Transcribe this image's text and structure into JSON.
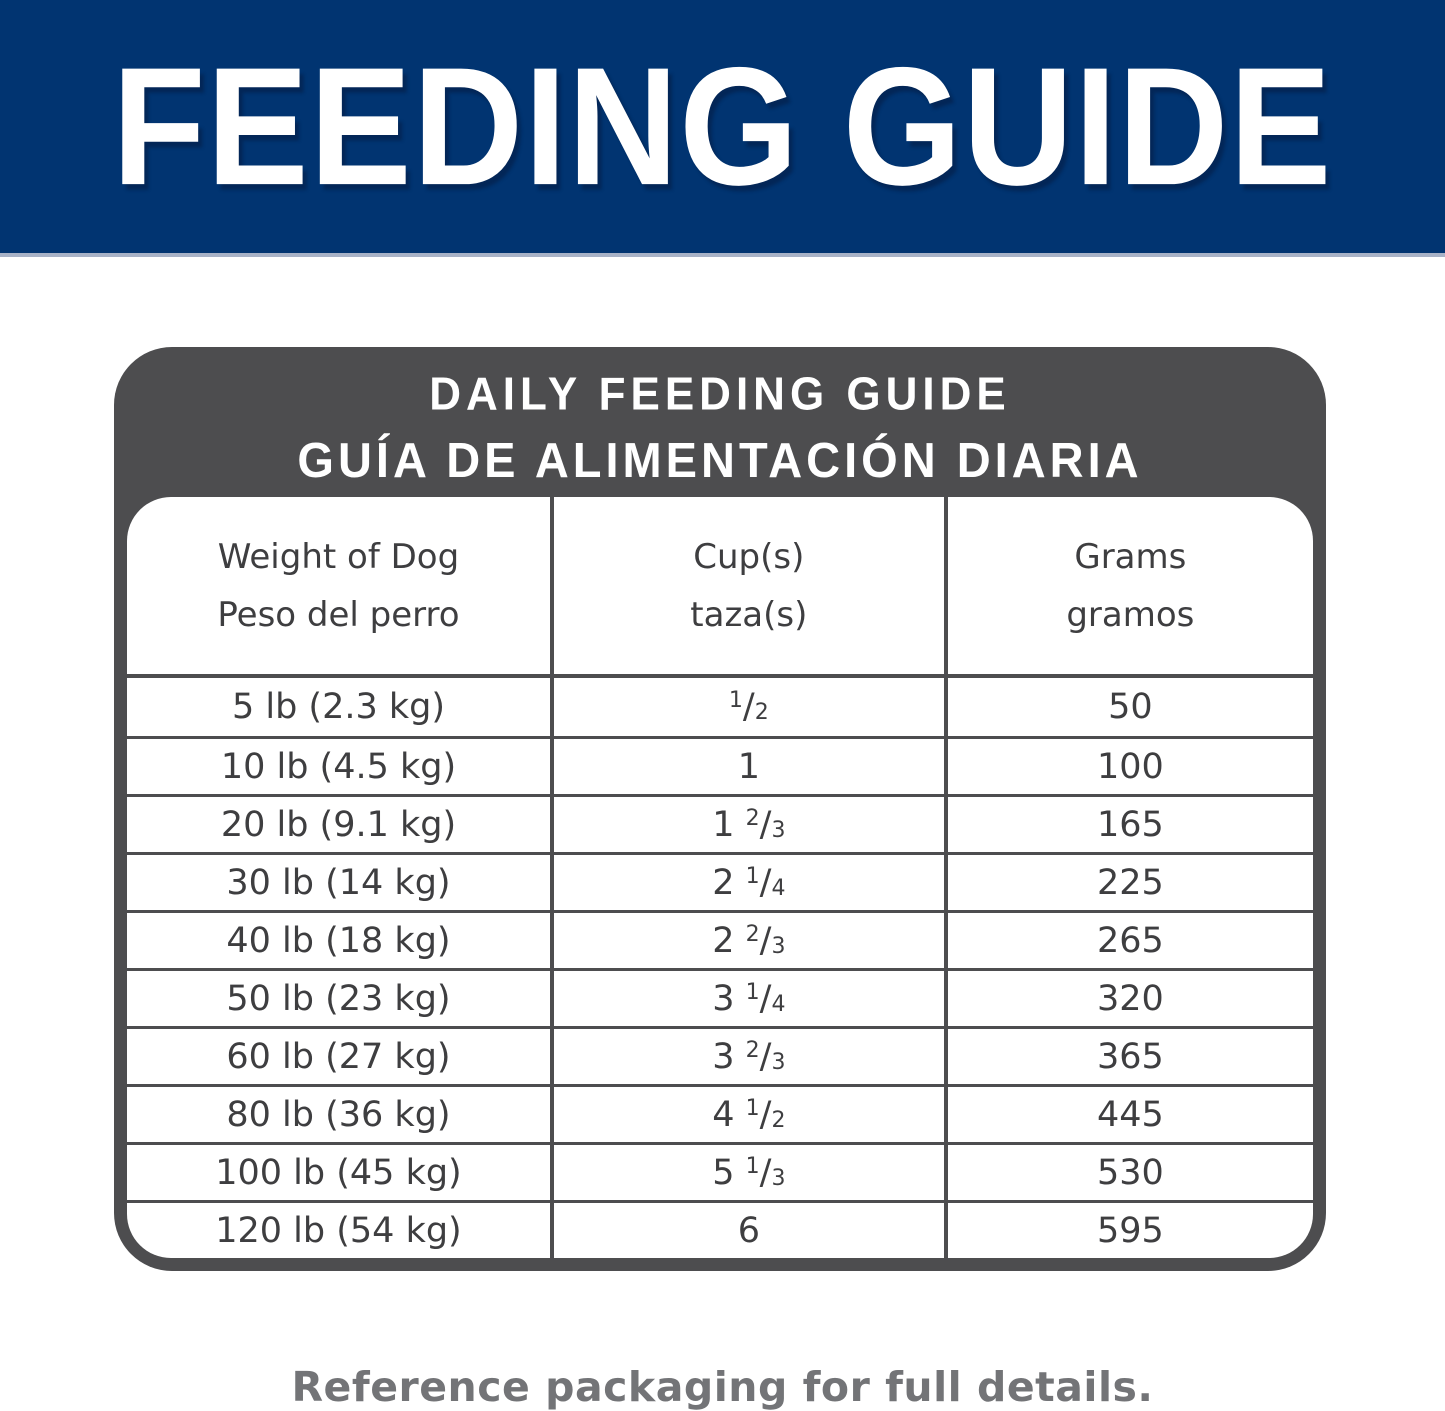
{
  "banner": {
    "title": "FEEDING GUIDE"
  },
  "card": {
    "title_en": "DAILY FEEDING GUIDE",
    "title_es": "GUÍA DE ALIMENTACIÓN DIARIA"
  },
  "table": {
    "columns": [
      {
        "en": "Weight of Dog",
        "es": "Peso del perro"
      },
      {
        "en": "Cup(s)",
        "es": "taza(s)"
      },
      {
        "en": "Grams",
        "es": "gramos"
      }
    ],
    "rows": [
      {
        "weight": "5 lb (2.3 kg)",
        "cups": {
          "whole": "",
          "num": "1",
          "den": "2"
        },
        "grams": "50"
      },
      {
        "weight": "10 lb (4.5 kg)",
        "cups": {
          "whole": "1",
          "num": "",
          "den": ""
        },
        "grams": "100"
      },
      {
        "weight": "20 lb (9.1 kg)",
        "cups": {
          "whole": "1",
          "num": "2",
          "den": "3"
        },
        "grams": "165"
      },
      {
        "weight": "30 lb (14 kg)",
        "cups": {
          "whole": "2",
          "num": "1",
          "den": "4"
        },
        "grams": "225"
      },
      {
        "weight": "40 lb (18 kg)",
        "cups": {
          "whole": "2",
          "num": "2",
          "den": "3"
        },
        "grams": "265"
      },
      {
        "weight": "50 lb (23 kg)",
        "cups": {
          "whole": "3",
          "num": "1",
          "den": "4"
        },
        "grams": "320"
      },
      {
        "weight": "60 lb (27 kg)",
        "cups": {
          "whole": "3",
          "num": "2",
          "den": "3"
        },
        "grams": "365"
      },
      {
        "weight": "80 lb (36 kg)",
        "cups": {
          "whole": "4",
          "num": "1",
          "den": "2"
        },
        "grams": "445"
      },
      {
        "weight": "100 lb (45 kg)",
        "cups": {
          "whole": "5",
          "num": "1",
          "den": "3"
        },
        "grams": "530"
      },
      {
        "weight": "120 lb (54 kg)",
        "cups": {
          "whole": "6",
          "num": "",
          "den": ""
        },
        "grams": "595"
      }
    ]
  },
  "footer": {
    "note": "Reference packaging for full details."
  },
  "colors": {
    "banner_blue": "#013471",
    "banner_rule": "#a8b2c7",
    "card_gray": "#4d4d4f",
    "table_text_gray": "#3e3e40",
    "note_gray": "#737477"
  }
}
